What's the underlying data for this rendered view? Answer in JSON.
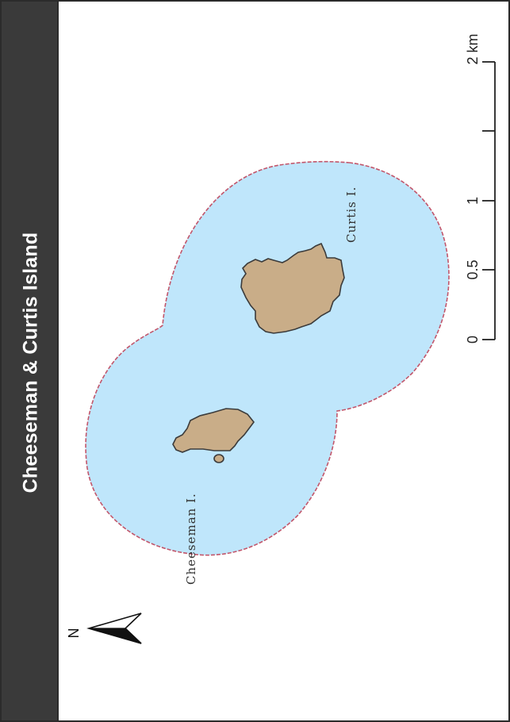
{
  "title": "Cheeseman & Curtis Island",
  "colors": {
    "title_bar": "#3a3a3a",
    "water": "#bfe6fb",
    "water_border": "#c2566b",
    "land": "#c9ad88",
    "land_border": "#3b3b3b"
  },
  "places": [
    {
      "name": "Curtis I."
    },
    {
      "name": "Cheeseman I."
    }
  ],
  "scale_bar": {
    "unit": "km",
    "ticks": [
      "0",
      "0.5",
      "1",
      "2 km"
    ]
  },
  "north_arrow": {
    "label": "N",
    "direction": "left"
  }
}
